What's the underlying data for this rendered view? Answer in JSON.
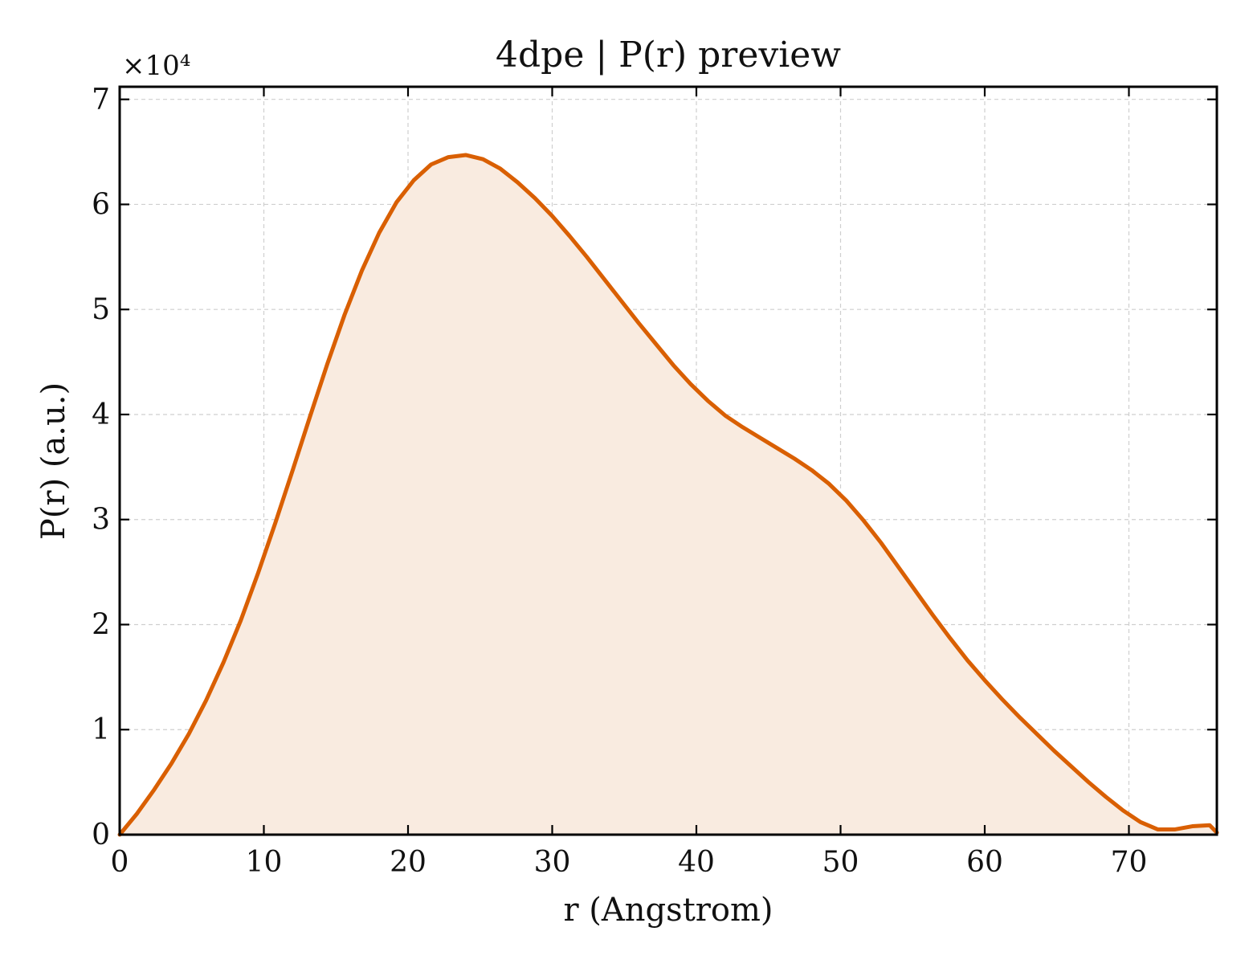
{
  "chart_data": {
    "type": "area",
    "title": "4dpe | P(r) preview",
    "xlabel": "r (Angstrom)",
    "ylabel": "P(r) (a.u.)",
    "y_offset_label": "×10⁴",
    "xlim": [
      0,
      76.1
    ],
    "ylim": [
      0,
      71200
    ],
    "x_ticks": [
      0,
      10,
      20,
      30,
      40,
      50,
      60,
      70
    ],
    "x_tick_labels": [
      "0",
      "10",
      "20",
      "30",
      "40",
      "50",
      "60",
      "70"
    ],
    "y_ticks": [
      0,
      10000,
      20000,
      30000,
      40000,
      50000,
      60000,
      70000
    ],
    "y_tick_labels": [
      "0",
      "1",
      "2",
      "3",
      "4",
      "5",
      "6",
      "7"
    ],
    "grid": true,
    "line_color": "#d95f02",
    "fill_color": "#f9ebe0",
    "x": [
      0,
      1.2,
      2.4,
      3.6,
      4.8,
      6.0,
      7.2,
      8.4,
      9.6,
      10.8,
      12.0,
      13.2,
      14.4,
      15.6,
      16.8,
      18.0,
      19.2,
      20.4,
      21.6,
      22.8,
      24.0,
      25.2,
      26.4,
      27.6,
      28.8,
      30.0,
      31.2,
      32.4,
      33.6,
      34.8,
      36.0,
      37.2,
      38.4,
      39.6,
      40.8,
      42.0,
      43.2,
      44.4,
      45.6,
      46.8,
      48.0,
      49.2,
      50.4,
      51.6,
      52.8,
      54.0,
      55.2,
      56.4,
      57.6,
      58.8,
      60.0,
      61.2,
      62.4,
      63.6,
      64.8,
      66.0,
      67.2,
      68.4,
      69.6,
      70.8,
      72.0,
      73.2,
      74.4,
      75.6,
      76.1
    ],
    "series": [
      {
        "values": [
          0,
          2000,
          4300,
          6800,
          9600,
          12800,
          16400,
          20400,
          24900,
          29700,
          34700,
          39800,
          44800,
          49500,
          53700,
          57300,
          60200,
          62300,
          63800,
          64500,
          64700,
          64300,
          63400,
          62100,
          60600,
          58900,
          57000,
          55000,
          52900,
          50800,
          48700,
          46700,
          44700,
          42900,
          41300,
          39900,
          38800,
          37800,
          36800,
          35800,
          34700,
          33400,
          31800,
          29900,
          27800,
          25500,
          23200,
          20900,
          18700,
          16600,
          14700,
          12900,
          11200,
          9600,
          8000,
          6500,
          5000,
          3600,
          2300,
          1200,
          500,
          500,
          800,
          900,
          200
        ]
      }
    ]
  }
}
